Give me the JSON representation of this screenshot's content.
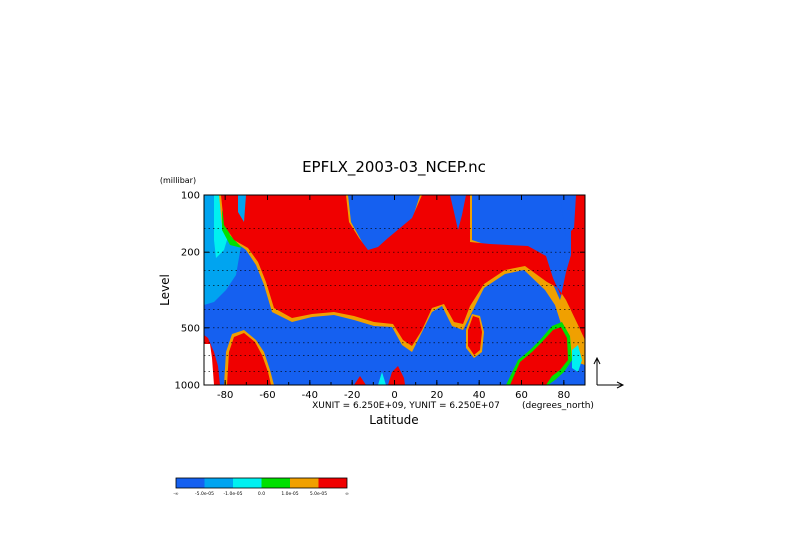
{
  "chart_data": {
    "type": "heatmap",
    "title": "EPFLX_2003-03_NCEP.nc",
    "xlabel": "Latitude",
    "xunits": "(degrees_north)",
    "ylabel": "Level",
    "yunits": "(millibar)",
    "vector_scale_note": "XUNIT = 6.250E+09, YUNIT = 6.250E+07",
    "xlim": [
      -90,
      90
    ],
    "ylim": [
      1000,
      100
    ],
    "y_scale": "log",
    "grid": true,
    "x_ticks": [
      "-80",
      "-60",
      "-40",
      "-20",
      "0",
      "20",
      "40",
      "60",
      "80"
    ],
    "y_ticks": [
      "100",
      "200",
      "500",
      "1000"
    ],
    "colorbar": {
      "colors": [
        "#1560f0",
        "#00a4f0",
        "#00f0f0",
        "#00e000",
        "#f0a000",
        "#f00000"
      ],
      "labels": [
        "-∞",
        "-5.0e-05",
        "-1.0e-05",
        "0.0",
        "1.0e-05",
        "5.0e-05",
        "∞"
      ]
    }
  }
}
